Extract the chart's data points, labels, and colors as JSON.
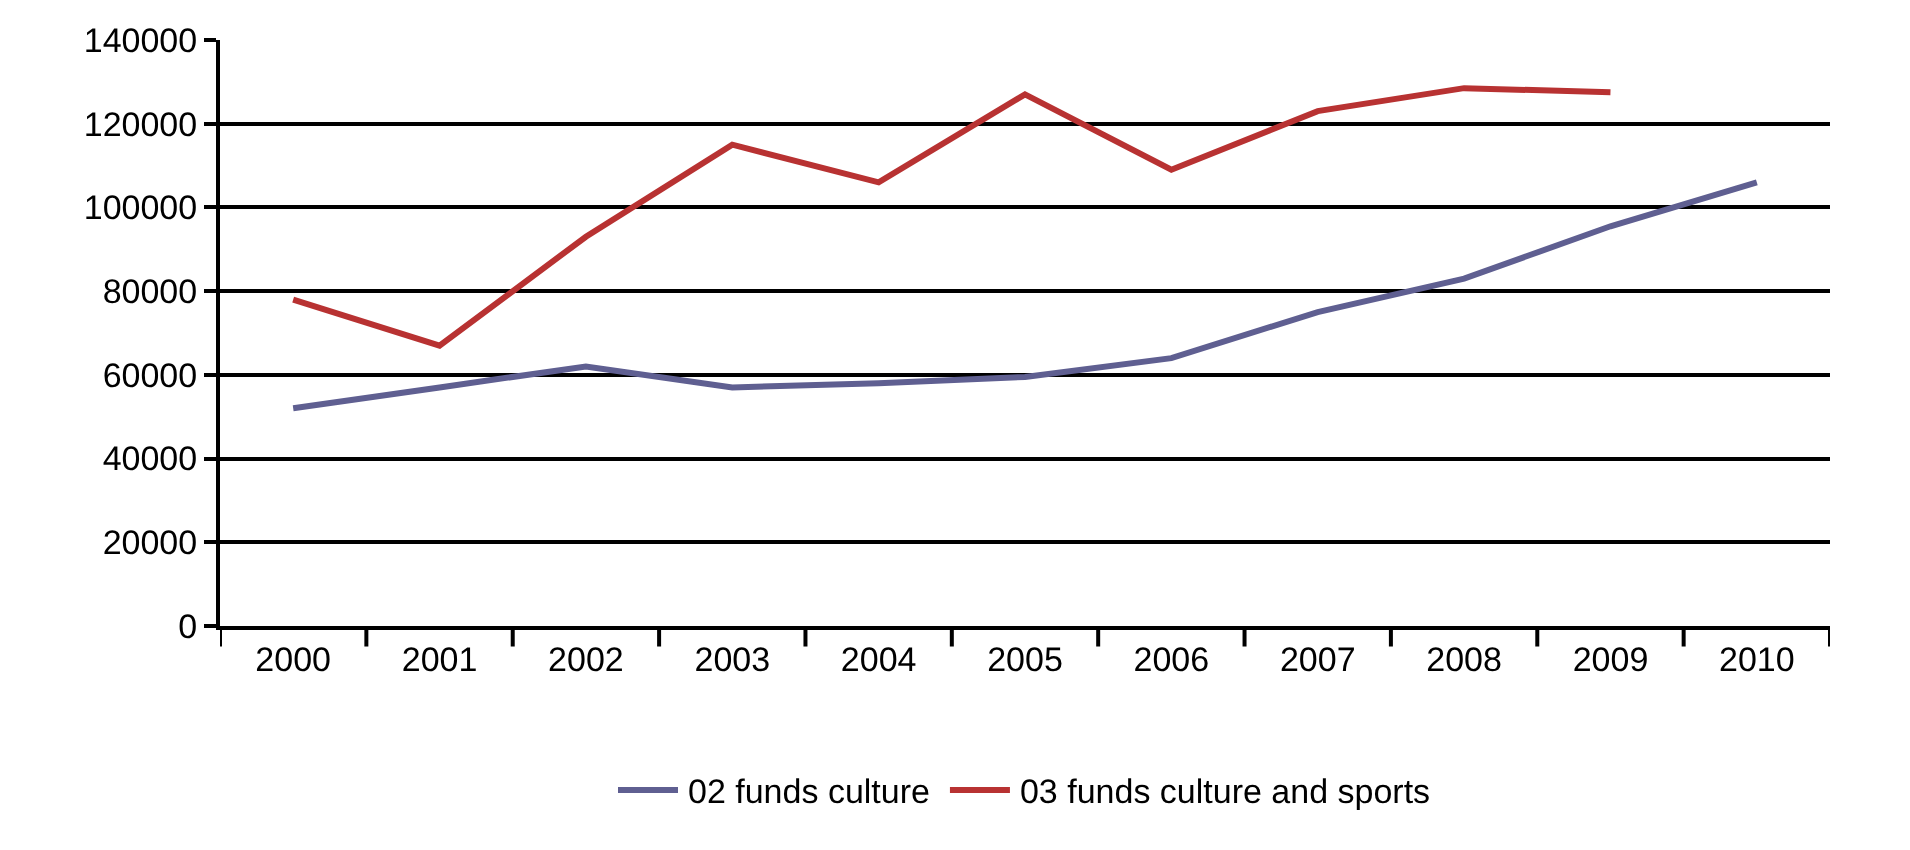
{
  "chart_data": {
    "type": "line",
    "categories": [
      "2000",
      "2001",
      "2002",
      "2003",
      "2004",
      "2005",
      "2006",
      "2007",
      "2008",
      "2009",
      "2010"
    ],
    "series": [
      {
        "name": "02 funds culture",
        "color": "#5f5f91",
        "values": [
          52000,
          57000,
          62000,
          57000,
          58000,
          59500,
          64000,
          75000,
          83000,
          95500,
          106000
        ]
      },
      {
        "name": "03 funds culture and sports",
        "color": "#b83232",
        "values": [
          78000,
          67000,
          93000,
          115000,
          106000,
          127000,
          109000,
          123000,
          128500,
          127500,
          null
        ]
      }
    ],
    "ylim": [
      0,
      140000
    ],
    "yticks": [
      0,
      20000,
      40000,
      60000,
      80000,
      100000,
      120000,
      140000
    ],
    "grid": "y",
    "legend": "bottom",
    "line_style": "solid",
    "marker": "none"
  }
}
